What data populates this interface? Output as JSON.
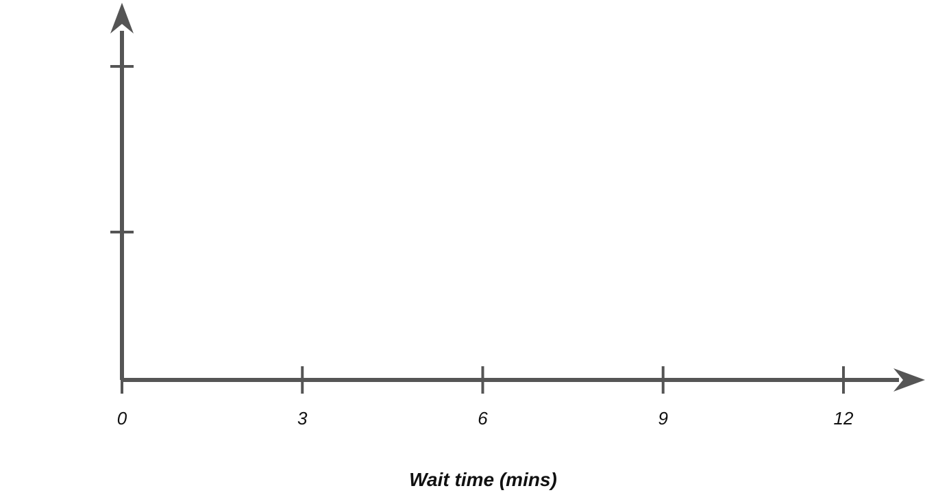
{
  "chart_data": {
    "type": "scatter",
    "title": "",
    "xlabel": "Wait time (mins)",
    "ylabel": "",
    "x_ticks": [
      0,
      3,
      6,
      9,
      12
    ],
    "x_tick_labels": [
      "0",
      "3",
      "6",
      "9",
      "12"
    ],
    "y_tick_count": 2,
    "xlim": [
      0,
      13.3
    ],
    "series": [],
    "grid": false,
    "axis_color": "#555555"
  }
}
